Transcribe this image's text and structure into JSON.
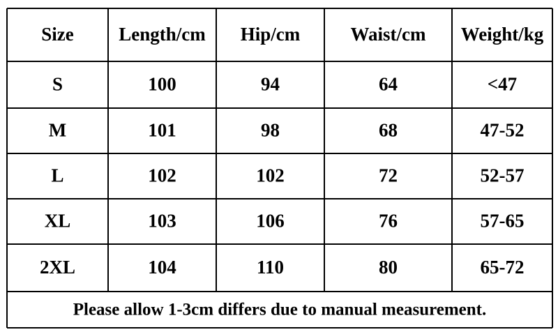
{
  "table": {
    "headers": [
      "Size",
      "Length/cm",
      "Hip/cm",
      "Waist/cm",
      "Weight/kg"
    ],
    "rows": [
      [
        "S",
        100,
        94,
        64,
        "<47"
      ],
      [
        "M",
        101,
        98,
        68,
        "47-52"
      ],
      [
        "L",
        102,
        102,
        72,
        "52-57"
      ],
      [
        "XL",
        103,
        106,
        76,
        "57-65"
      ],
      [
        "2XL",
        104,
        110,
        80,
        "65-72"
      ]
    ],
    "note": "Please allow 1-3cm differs due to manual measurement."
  }
}
